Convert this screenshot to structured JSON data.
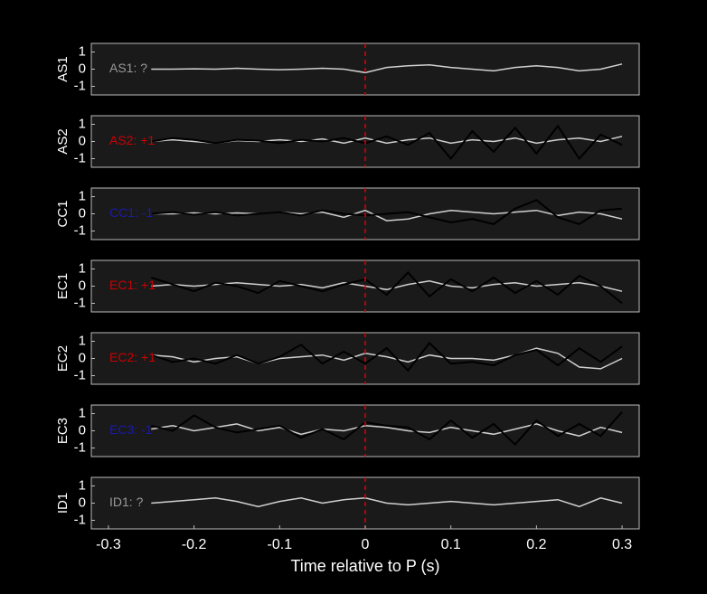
{
  "chart_data": [
    {
      "type": "line",
      "ylabel": "AS1",
      "annotation": "AS1: ?",
      "annotation_color": "#999999",
      "background": "#1a1a1a",
      "vline": {
        "value": 0,
        "color": "#dd0000"
      },
      "x": [
        -0.25,
        -0.225,
        -0.2,
        -0.175,
        -0.15,
        -0.125,
        -0.1,
        -0.075,
        -0.05,
        -0.025,
        0,
        0.025,
        0.05,
        0.075,
        0.1,
        0.125,
        0.15,
        0.175,
        0.2,
        0.225,
        0.25,
        0.275,
        0.3
      ],
      "xlim": [
        -0.32,
        0.32
      ],
      "ylim": [
        -1.5,
        1.5
      ],
      "yticks": [
        -1,
        0,
        1
      ],
      "series": [
        {
          "color": "#d0d0d0",
          "values": [
            0,
            0,
            0.02,
            0,
            0.05,
            0,
            -0.03,
            0,
            0.05,
            0,
            -0.2,
            0.1,
            0.2,
            0.25,
            0.1,
            0,
            -0.1,
            0.1,
            0.2,
            0.1,
            -0.1,
            0,
            0.3
          ]
        }
      ]
    },
    {
      "type": "line",
      "ylabel": "AS2",
      "annotation": "AS2: +1",
      "annotation_color": "#cc0000",
      "background": "#1a1a1a",
      "vline": {
        "value": 0,
        "color": "#dd0000"
      },
      "x": [
        -0.25,
        -0.225,
        -0.2,
        -0.175,
        -0.15,
        -0.125,
        -0.1,
        -0.075,
        -0.05,
        -0.025,
        0,
        0.025,
        0.05,
        0.075,
        0.1,
        0.125,
        0.15,
        0.175,
        0.2,
        0.225,
        0.25,
        0.275,
        0.3
      ],
      "xlim": [
        -0.32,
        0.32
      ],
      "ylim": [
        -1.5,
        1.5
      ],
      "yticks": [
        -1,
        0,
        1
      ],
      "series": [
        {
          "color": "#d0d0d0",
          "values": [
            0,
            0.1,
            0,
            -0.1,
            0.05,
            0,
            0.1,
            0,
            0.15,
            -0.1,
            0.2,
            -0.1,
            0.1,
            0.2,
            -0.1,
            0.1,
            0,
            0.2,
            -0.1,
            0.1,
            0.2,
            0,
            0.3
          ]
        },
        {
          "color": "#000000",
          "values": [
            0,
            0.2,
            0.1,
            -0.1,
            0.1,
            0.05,
            -0.1,
            0.1,
            0,
            0.2,
            -0.1,
            0.3,
            -0.2,
            0.5,
            -1,
            0.6,
            -0.6,
            0.8,
            -0.7,
            0.9,
            -1,
            0.4,
            -0.2
          ]
        }
      ]
    },
    {
      "type": "line",
      "ylabel": "CC1",
      "annotation": "CC1: -1",
      "annotation_color": "#1a1aaa",
      "background": "#1a1a1a",
      "vline": {
        "value": 0,
        "color": "#dd0000"
      },
      "x": [
        -0.25,
        -0.225,
        -0.2,
        -0.175,
        -0.15,
        -0.125,
        -0.1,
        -0.075,
        -0.05,
        -0.025,
        0,
        0.025,
        0.05,
        0.075,
        0.1,
        0.125,
        0.15,
        0.175,
        0.2,
        0.225,
        0.25,
        0.275,
        0.3
      ],
      "xlim": [
        -0.32,
        0.32
      ],
      "ylim": [
        -1.5,
        1.5
      ],
      "yticks": [
        -1,
        0,
        1
      ],
      "series": [
        {
          "color": "#d0d0d0",
          "values": [
            0,
            0,
            0.05,
            0,
            0.05,
            0,
            0.1,
            0,
            0.1,
            -0.2,
            0.2,
            -0.4,
            -0.3,
            0,
            0.2,
            0.1,
            0,
            0.1,
            0.2,
            -0.1,
            0.1,
            0,
            -0.3
          ]
        },
        {
          "color": "#000000",
          "values": [
            0,
            0.1,
            -0.05,
            0.1,
            -0.1,
            0,
            0.1,
            -0.1,
            0.2,
            0,
            -0.1,
            0,
            0.1,
            -0.2,
            -0.5,
            -0.3,
            -0.6,
            0.3,
            0.8,
            -0.2,
            -0.6,
            0.2,
            0.3
          ]
        }
      ]
    },
    {
      "type": "line",
      "ylabel": "EC1",
      "annotation": "EC1: +1",
      "annotation_color": "#cc0000",
      "background": "#1a1a1a",
      "vline": {
        "value": 0,
        "color": "#dd0000"
      },
      "x": [
        -0.25,
        -0.225,
        -0.2,
        -0.175,
        -0.15,
        -0.125,
        -0.1,
        -0.075,
        -0.05,
        -0.025,
        0,
        0.025,
        0.05,
        0.075,
        0.1,
        0.125,
        0.15,
        0.175,
        0.2,
        0.225,
        0.25,
        0.275,
        0.3
      ],
      "xlim": [
        -0.32,
        0.32
      ],
      "ylim": [
        -1.5,
        1.5
      ],
      "yticks": [
        -1,
        0,
        1
      ],
      "series": [
        {
          "color": "#d0d0d0",
          "values": [
            0,
            0.1,
            0,
            0.1,
            0.2,
            0.1,
            0,
            0.1,
            -0.1,
            0.2,
            0,
            -0.2,
            0.1,
            0.3,
            0,
            -0.1,
            0.1,
            0.2,
            0,
            0.1,
            0.2,
            0,
            -0.3
          ]
        },
        {
          "color": "#000000",
          "values": [
            0.5,
            0.1,
            -0.3,
            0.2,
            0,
            -0.4,
            0.3,
            0,
            -0.3,
            0.1,
            0.4,
            -0.5,
            0.8,
            -0.6,
            0.4,
            -0.3,
            0.5,
            -0.4,
            0.3,
            -0.5,
            0.6,
            0,
            -1
          ]
        }
      ]
    },
    {
      "type": "line",
      "ylabel": "EC2",
      "annotation": "EC2: +1",
      "annotation_color": "#cc0000",
      "background": "#1a1a1a",
      "vline": {
        "value": 0,
        "color": "#dd0000"
      },
      "x": [
        -0.25,
        -0.225,
        -0.2,
        -0.175,
        -0.15,
        -0.125,
        -0.1,
        -0.075,
        -0.05,
        -0.025,
        0,
        0.025,
        0.05,
        0.075,
        0.1,
        0.125,
        0.15,
        0.175,
        0.2,
        0.225,
        0.25,
        0.275,
        0.3
      ],
      "xlim": [
        -0.32,
        0.32
      ],
      "ylim": [
        -1.5,
        1.5
      ],
      "yticks": [
        -1,
        0,
        1
      ],
      "series": [
        {
          "color": "#d0d0d0",
          "values": [
            0.2,
            0.1,
            -0.2,
            0,
            0.1,
            -0.3,
            0,
            0.1,
            0.2,
            -0.1,
            0.3,
            0.1,
            -0.2,
            0.2,
            0,
            0,
            -0.1,
            0.2,
            0.6,
            0.3,
            -0.5,
            -0.6,
            0
          ]
        },
        {
          "color": "#000000",
          "values": [
            0.2,
            -0.2,
            0,
            -0.3,
            0.2,
            -0.3,
            0.1,
            0.8,
            -0.3,
            0.4,
            -0.3,
            0.6,
            -0.7,
            0.9,
            -0.3,
            -0.2,
            -0.4,
            0.2,
            0.5,
            -0.4,
            0.6,
            -0.2,
            0.7
          ]
        }
      ]
    },
    {
      "type": "line",
      "ylabel": "EC3",
      "annotation": "EC3: -1",
      "annotation_color": "#1a1aaa",
      "background": "#1a1a1a",
      "vline": {
        "value": 0,
        "color": "#dd0000"
      },
      "x": [
        -0.25,
        -0.225,
        -0.2,
        -0.175,
        -0.15,
        -0.125,
        -0.1,
        -0.075,
        -0.05,
        -0.025,
        0,
        0.025,
        0.05,
        0.075,
        0.1,
        0.125,
        0.15,
        0.175,
        0.2,
        0.225,
        0.25,
        0.275,
        0.3
      ],
      "xlim": [
        -0.32,
        0.32
      ],
      "ylim": [
        -1.5,
        1.5
      ],
      "yticks": [
        -1,
        0,
        1
      ],
      "series": [
        {
          "color": "#d0d0d0",
          "values": [
            0.1,
            0.3,
            0,
            0.2,
            0.4,
            0,
            0.2,
            -0.2,
            0.1,
            0,
            0.3,
            0.2,
            0,
            -0.1,
            0.2,
            0,
            -0.2,
            0.1,
            0.4,
            0,
            -0.3,
            0.2,
            -0.1
          ]
        },
        {
          "color": "#000000",
          "values": [
            0.3,
            0,
            0.9,
            0.2,
            -0.1,
            0.1,
            0.3,
            -0.4,
            0.1,
            -0.5,
            0.5,
            0.3,
            0.2,
            -0.5,
            0.6,
            -0.4,
            0.4,
            -0.8,
            0.6,
            -0.3,
            0.4,
            -0.3,
            1.1
          ]
        }
      ]
    },
    {
      "type": "line",
      "ylabel": "ID1",
      "annotation": "ID1: ?",
      "annotation_color": "#999999",
      "background": "#1a1a1a",
      "vline": {
        "value": 0,
        "color": "#dd0000"
      },
      "x": [
        -0.25,
        -0.225,
        -0.2,
        -0.175,
        -0.15,
        -0.125,
        -0.1,
        -0.075,
        -0.05,
        -0.025,
        0,
        0.025,
        0.05,
        0.075,
        0.1,
        0.125,
        0.15,
        0.175,
        0.2,
        0.225,
        0.25,
        0.275,
        0.3
      ],
      "xlim": [
        -0.32,
        0.32
      ],
      "ylim": [
        -1.5,
        1.5
      ],
      "yticks": [
        -1,
        0,
        1
      ],
      "xticks": [
        -0.3,
        -0.2,
        -0.1,
        0,
        0.1,
        0.2,
        0.3
      ],
      "xlabel": "Time relative to P (s)",
      "series": [
        {
          "color": "#d0d0d0",
          "values": [
            0,
            0.1,
            0.2,
            0.3,
            0.1,
            -0.2,
            0.1,
            0.3,
            0,
            0.2,
            0.3,
            0,
            -0.1,
            0,
            0.1,
            0,
            -0.1,
            0,
            0.1,
            0.2,
            -0.2,
            0.3,
            0
          ]
        }
      ]
    }
  ]
}
